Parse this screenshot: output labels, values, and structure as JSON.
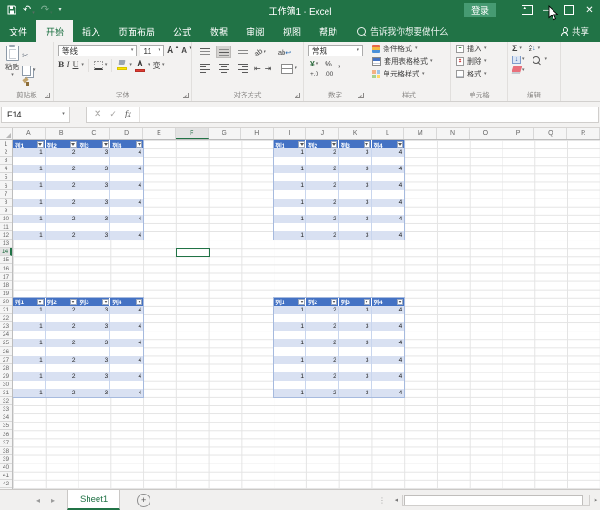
{
  "window": {
    "title": "工作簿1 - Excel",
    "sign_in_label": "登录"
  },
  "menu": {
    "tabs": [
      {
        "label": "文件",
        "file": true
      },
      {
        "label": "开始",
        "active": true
      },
      {
        "label": "插入"
      },
      {
        "label": "页面布局"
      },
      {
        "label": "公式"
      },
      {
        "label": "数据"
      },
      {
        "label": "审阅"
      },
      {
        "label": "视图"
      },
      {
        "label": "帮助"
      }
    ],
    "tell_me": "告诉我你想要做什么",
    "share_label": "共享"
  },
  "ribbon": {
    "clipboard": {
      "label": "剪贴板",
      "paste_label": "粘贴"
    },
    "font": {
      "label": "字体",
      "font_name": "等线",
      "font_size": "11",
      "bold": "B",
      "italic": "I",
      "underline": "U",
      "phonetic": "变",
      "grow": "A",
      "shrink": "A"
    },
    "alignment": {
      "label": "对齐方式",
      "ab": "ab"
    },
    "number": {
      "label": "数字",
      "format_value": "常规",
      "currency": "¥",
      "percent": "%",
      "comma": ",",
      "inc_dec": "+.0",
      "dec_dec": ".00"
    },
    "styles": {
      "label": "样式",
      "conditional_label": "条件格式",
      "format_table_label": "套用表格格式",
      "cell_styles_label": "单元格样式"
    },
    "cells": {
      "label": "单元格",
      "insert_label": "插入",
      "delete_label": "删除",
      "format_label": "格式"
    },
    "editing": {
      "label": "编辑",
      "sum": "Σ",
      "sort_top": "A",
      "sort_bottom": "Z"
    }
  },
  "formula_bar": {
    "name_box": "F14",
    "fx": "fx",
    "formula": ""
  },
  "grid": {
    "columns": [
      "A",
      "B",
      "C",
      "D",
      "E",
      "F",
      "G",
      "H",
      "I",
      "J",
      "K",
      "L",
      "M",
      "N",
      "O",
      "P",
      "Q",
      "R"
    ],
    "row_count": 42,
    "selected_cell": "F14",
    "selected_col": "F",
    "selected_row": 14
  },
  "tables": [
    {
      "anchor": "A1",
      "col_index": 0,
      "row_start": 1,
      "headers": [
        "列1",
        "列2",
        "列3",
        "列4"
      ],
      "rows": [
        [
          1,
          2,
          3,
          4
        ],
        [],
        [
          1,
          2,
          3,
          4
        ],
        [],
        [
          1,
          2,
          3,
          4
        ],
        [],
        [
          1,
          2,
          3,
          4
        ],
        [],
        [
          1,
          2,
          3,
          4
        ],
        [],
        [
          1,
          2,
          3,
          4
        ]
      ]
    },
    {
      "anchor": "I1",
      "col_index": 8,
      "row_start": 1,
      "headers": [
        "列1",
        "列2",
        "列3",
        "列4"
      ],
      "rows": [
        [
          1,
          2,
          3,
          4
        ],
        [],
        [
          1,
          2,
          3,
          4
        ],
        [],
        [
          1,
          2,
          3,
          4
        ],
        [],
        [
          1,
          2,
          3,
          4
        ],
        [],
        [
          1,
          2,
          3,
          4
        ],
        [],
        [
          1,
          2,
          3,
          4
        ]
      ]
    },
    {
      "anchor": "A20",
      "col_index": 0,
      "row_start": 20,
      "headers": [
        "列1",
        "列2",
        "列3",
        "列4"
      ],
      "rows": [
        [
          1,
          2,
          3,
          4
        ],
        [],
        [
          1,
          2,
          3,
          4
        ],
        [],
        [
          1,
          2,
          3,
          4
        ],
        [],
        [
          1,
          2,
          3,
          4
        ],
        [],
        [
          1,
          2,
          3,
          4
        ],
        [],
        [
          1,
          2,
          3,
          4
        ]
      ]
    },
    {
      "anchor": "I20",
      "col_index": 8,
      "row_start": 20,
      "headers": [
        "列1",
        "列2",
        "列3",
        "列4"
      ],
      "rows": [
        [
          1,
          2,
          3,
          4
        ],
        [],
        [
          1,
          2,
          3,
          4
        ],
        [],
        [
          1,
          2,
          3,
          4
        ],
        [],
        [
          1,
          2,
          3,
          4
        ],
        [],
        [
          1,
          2,
          3,
          4
        ],
        [],
        [
          1,
          2,
          3,
          4
        ]
      ]
    }
  ],
  "sheet_bar": {
    "active_tab": "Sheet1"
  },
  "colors": {
    "accent_green": "#217346",
    "table_header": "#4472C4",
    "table_band": "#D9E1F2",
    "ribbon_bg": "#F3F2F1"
  }
}
